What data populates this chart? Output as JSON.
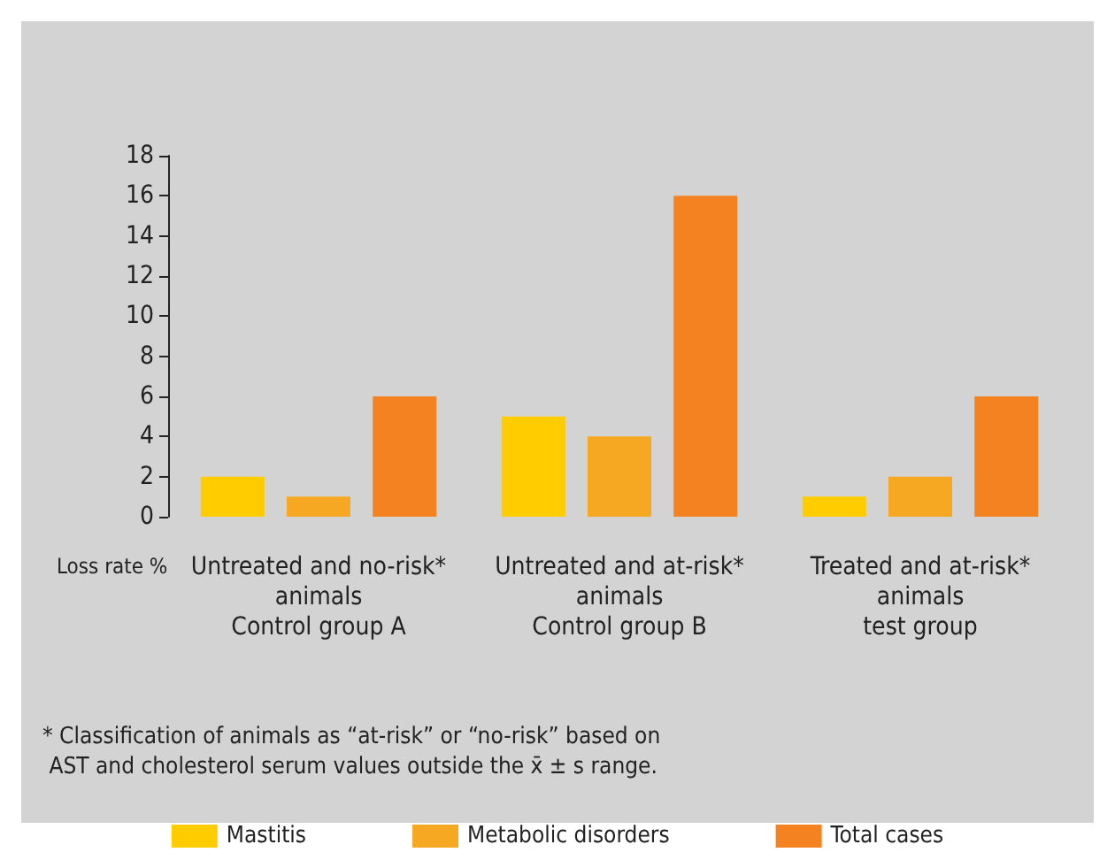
{
  "chart_data": {
    "type": "bar",
    "ylabel": "Loss rate %",
    "categories": [
      "Untreated and no-risk*\nanimals\nControl group A",
      "Untreated and at-risk*\nanimals\nControl group B",
      "Treated and at-risk*\nanimals\ntest group"
    ],
    "series": [
      {
        "name": "Mastitis",
        "color": "#ffcc00",
        "values": [
          2,
          5,
          1
        ]
      },
      {
        "name": "Metabolic disorders",
        "color": "#f7a823",
        "values": [
          1,
          4,
          2
        ]
      },
      {
        "name": "Total cases",
        "color": "#f58220",
        "values": [
          6,
          16,
          6
        ]
      }
    ],
    "ylim": [
      0,
      18
    ],
    "yticks": [
      0,
      2,
      4,
      6,
      8,
      10,
      12,
      14,
      16,
      18
    ],
    "grid": false,
    "legend": "bottom",
    "annotations": [
      "* Classification of animals as “at-risk” or “no-risk” based on AST and cholesterol serum values outside the x̄ ± s range."
    ]
  }
}
